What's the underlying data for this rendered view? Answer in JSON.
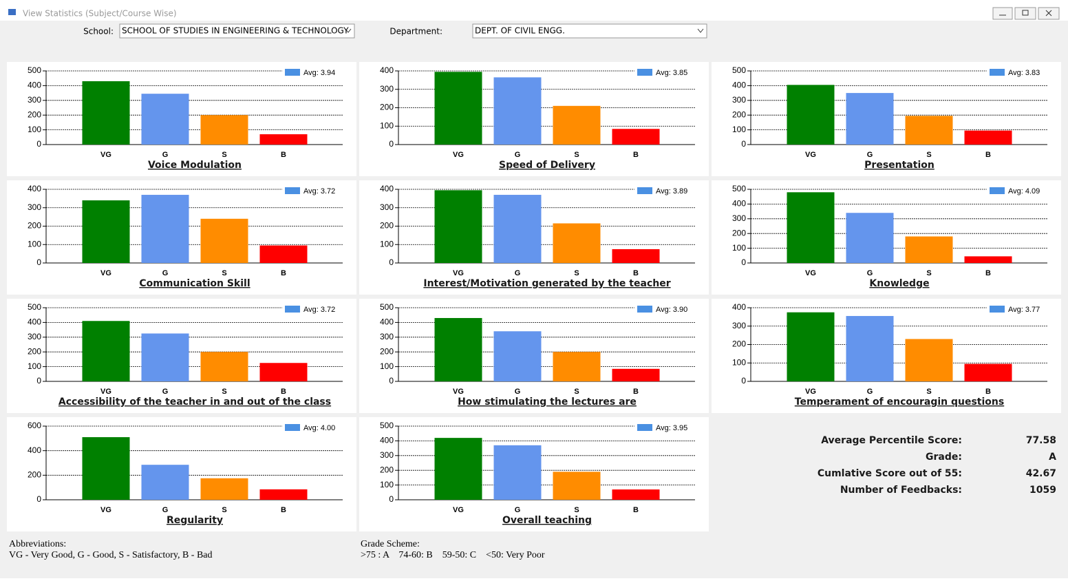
{
  "window": {
    "title": "View Statistics (Subject/Course Wise)"
  },
  "filters": {
    "school_label": "School:",
    "school_value": "SCHOOL OF STUDIES IN ENGINEERING & TECHNOLOGY",
    "department_label": "Department:",
    "department_value": "DEPT. OF CIVIL ENGG."
  },
  "chart_data": [
    {
      "type": "bar",
      "title": "Voice Modulation",
      "categories": [
        "VG",
        "G",
        "S",
        "B"
      ],
      "values": [
        430,
        345,
        200,
        70
      ],
      "colors": [
        "#008000",
        "#6495ed",
        "#ff8c00",
        "#ff0000"
      ],
      "legend": "Avg: 3.94",
      "legend_color": "#4a90e2",
      "ylim": [
        0,
        500
      ],
      "yticks": [
        0,
        100,
        200,
        300,
        400,
        500
      ],
      "grid": true
    },
    {
      "type": "bar",
      "title": "Speed of Delivery",
      "categories": [
        "VG",
        "G",
        "S",
        "B"
      ],
      "values": [
        395,
        365,
        210,
        85
      ],
      "colors": [
        "#008000",
        "#6495ed",
        "#ff8c00",
        "#ff0000"
      ],
      "legend": "Avg: 3.85",
      "legend_color": "#4a90e2",
      "ylim": [
        0,
        400
      ],
      "yticks": [
        0,
        100,
        200,
        300,
        400
      ],
      "grid": true
    },
    {
      "type": "bar",
      "title": "Presentation",
      "categories": [
        "VG",
        "G",
        "S",
        "B"
      ],
      "values": [
        405,
        350,
        195,
        95
      ],
      "colors": [
        "#008000",
        "#6495ed",
        "#ff8c00",
        "#ff0000"
      ],
      "legend": "Avg: 3.83",
      "legend_color": "#4a90e2",
      "ylim": [
        0,
        500
      ],
      "yticks": [
        0,
        100,
        200,
        300,
        400,
        500
      ],
      "grid": true
    },
    {
      "type": "bar",
      "title": "Communication Skill",
      "categories": [
        "VG",
        "G",
        "S",
        "B"
      ],
      "values": [
        340,
        370,
        240,
        95
      ],
      "colors": [
        "#008000",
        "#6495ed",
        "#ff8c00",
        "#ff0000"
      ],
      "legend": "Avg: 3.72",
      "legend_color": "#4a90e2",
      "ylim": [
        0,
        400
      ],
      "yticks": [
        0,
        100,
        200,
        300,
        400
      ],
      "grid": true
    },
    {
      "type": "bar",
      "title": "Interest/Motivation generated by the teacher",
      "categories": [
        "VG",
        "G",
        "S",
        "B"
      ],
      "values": [
        395,
        370,
        215,
        75
      ],
      "colors": [
        "#008000",
        "#6495ed",
        "#ff8c00",
        "#ff0000"
      ],
      "legend": "Avg: 3.89",
      "legend_color": "#4a90e2",
      "ylim": [
        0,
        400
      ],
      "yticks": [
        0,
        100,
        200,
        300,
        400
      ],
      "grid": true
    },
    {
      "type": "bar",
      "title": "Knowledge",
      "categories": [
        "VG",
        "G",
        "S",
        "B"
      ],
      "values": [
        480,
        340,
        180,
        45
      ],
      "colors": [
        "#008000",
        "#6495ed",
        "#ff8c00",
        "#ff0000"
      ],
      "legend": "Avg: 4.09",
      "legend_color": "#4a90e2",
      "ylim": [
        0,
        500
      ],
      "yticks": [
        0,
        100,
        200,
        300,
        400,
        500
      ],
      "grid": true
    },
    {
      "type": "bar",
      "title": "Accessibility of the teacher in and out of the class",
      "categories": [
        "VG",
        "G",
        "S",
        "B"
      ],
      "values": [
        410,
        325,
        200,
        125
      ],
      "colors": [
        "#008000",
        "#6495ed",
        "#ff8c00",
        "#ff0000"
      ],
      "legend": "Avg: 3.72",
      "legend_color": "#4a90e2",
      "ylim": [
        0,
        500
      ],
      "yticks": [
        0,
        100,
        200,
        300,
        400,
        500
      ],
      "grid": true
    },
    {
      "type": "bar",
      "title": "How stimulating the lectures are",
      "categories": [
        "VG",
        "G",
        "S",
        "B"
      ],
      "values": [
        430,
        340,
        200,
        85
      ],
      "colors": [
        "#008000",
        "#6495ed",
        "#ff8c00",
        "#ff0000"
      ],
      "legend": "Avg: 3.90",
      "legend_color": "#4a90e2",
      "ylim": [
        0,
        500
      ],
      "yticks": [
        0,
        100,
        200,
        300,
        400,
        500
      ],
      "grid": true
    },
    {
      "type": "bar",
      "title": "Temperament of encouragin questions",
      "categories": [
        "VG",
        "G",
        "S",
        "B"
      ],
      "values": [
        375,
        355,
        230,
        95
      ],
      "colors": [
        "#008000",
        "#6495ed",
        "#ff8c00",
        "#ff0000"
      ],
      "legend": "Avg: 3.77",
      "legend_color": "#4a90e2",
      "ylim": [
        0,
        400
      ],
      "yticks": [
        0,
        100,
        200,
        300,
        400
      ],
      "grid": true
    },
    {
      "type": "bar",
      "title": "Regularity",
      "categories": [
        "VG",
        "G",
        "S",
        "B"
      ],
      "values": [
        510,
        285,
        175,
        85
      ],
      "colors": [
        "#008000",
        "#6495ed",
        "#ff8c00",
        "#ff0000"
      ],
      "legend": "Avg: 4.00",
      "legend_color": "#4a90e2",
      "ylim": [
        0,
        600
      ],
      "yticks": [
        0,
        200,
        400,
        600
      ],
      "grid": true
    },
    {
      "type": "bar",
      "title": "Overall teaching",
      "categories": [
        "VG",
        "G",
        "S",
        "B"
      ],
      "values": [
        420,
        370,
        190,
        70
      ],
      "colors": [
        "#008000",
        "#6495ed",
        "#ff8c00",
        "#ff0000"
      ],
      "legend": "Avg: 3.95",
      "legend_color": "#4a90e2",
      "ylim": [
        0,
        500
      ],
      "yticks": [
        0,
        100,
        200,
        300,
        400,
        500
      ],
      "grid": true
    }
  ],
  "summary": {
    "rows": [
      {
        "label": "Average Percentile Score:",
        "value": 77.58
      },
      {
        "label": "Grade:",
        "value": "A"
      },
      {
        "label": "Cumlative Score out of 55:",
        "value": 42.67
      },
      {
        "label": "Number of Feedbacks:",
        "value": 1059
      }
    ]
  },
  "footer": {
    "abbreviations_title": "Abbreviations:",
    "abbreviations_text": "VG - Very Good, G - Good, S - Satisfactory, B - Bad",
    "grade_title": "Grade Scheme:",
    "grade_text": ">75 : A    74-60: B    59-50: C    <50: Very Poor"
  }
}
